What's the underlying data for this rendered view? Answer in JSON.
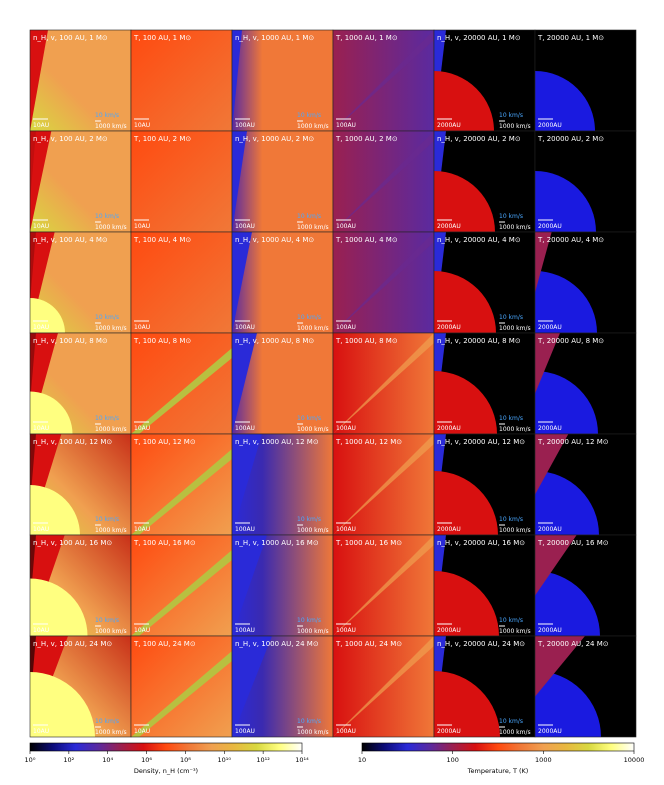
{
  "chart_data": {
    "type": "heatmap",
    "layout": {
      "rows": 7,
      "columns": 6
    },
    "columns": [
      {
        "quantity": "n_H, v",
        "scale": "100 AU",
        "length_bar": "10AU",
        "vel_bars": [
          "10 km/s",
          "1000 km/s"
        ],
        "cmap": "density"
      },
      {
        "quantity": "T",
        "scale": "100 AU",
        "length_bar": "10AU",
        "vel_bars": [],
        "cmap": "temperature"
      },
      {
        "quantity": "n_H, v",
        "scale": "1000 AU",
        "length_bar": "100AU",
        "vel_bars": [
          "10 km/s",
          "1000 km/s"
        ],
        "cmap": "density"
      },
      {
        "quantity": "T",
        "scale": "1000 AU",
        "length_bar": "100AU",
        "vel_bars": [],
        "cmap": "temperature"
      },
      {
        "quantity": "n_H, v",
        "scale": "20000 AU",
        "length_bar": "2000AU",
        "vel_bars": [
          "10 km/s",
          "1000 km/s"
        ],
        "cmap": "density"
      },
      {
        "quantity": "T",
        "scale": "20000 AU",
        "length_bar": "2000AU",
        "vel_bars": [],
        "cmap": "temperature"
      }
    ],
    "rows": [
      {
        "mass": "1 M⊙"
      },
      {
        "mass": "2 M⊙"
      },
      {
        "mass": "4 M⊙"
      },
      {
        "mass": "8 M⊙"
      },
      {
        "mass": "12 M⊙"
      },
      {
        "mass": "16 M⊙"
      },
      {
        "mass": "24 M⊙"
      }
    ],
    "colorbars": [
      {
        "label": "Density, n_H (cm⁻³)",
        "scale": "log",
        "range": [
          1,
          100000000000000
        ],
        "ticks": [
          "10⁰",
          "10²",
          "10⁴",
          "10⁶",
          "10⁸",
          "10¹⁰",
          "10¹²",
          "10¹⁴"
        ]
      },
      {
        "label": "Temperature, T (K)",
        "scale": "log",
        "range": [
          10,
          10000
        ],
        "ticks": [
          "10",
          "100",
          "1000",
          "10000"
        ]
      }
    ],
    "colors": {
      "cmap": [
        "#000000",
        "#0c0c78",
        "#2a2ad8",
        "#5a2aa0",
        "#9a2050",
        "#d81010",
        "#ff4a10",
        "#f07838",
        "#f0a050",
        "#e8b840",
        "#d8d840",
        "#ffff80",
        "#ffffff"
      ],
      "label_text": "#ffffff",
      "velocity_label": "#4aa8ff",
      "tick": "#000000"
    }
  }
}
